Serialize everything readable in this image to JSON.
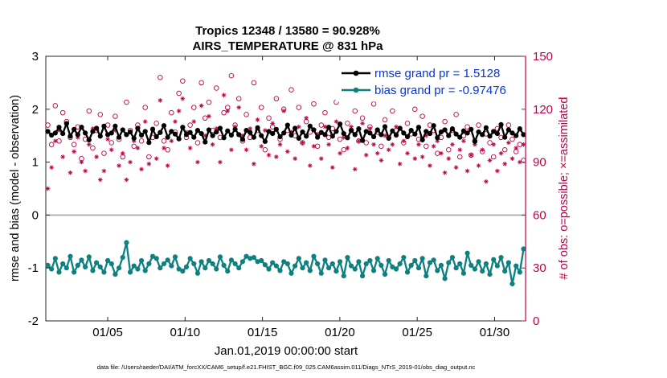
{
  "chart_data": {
    "type": "line",
    "title": "Tropics 12348 / 13580 = 90.928%",
    "subtitle": "AIRS_TEMPERATURE @ 831 hPa",
    "xlabel": "Jan.01,2019 00:00:00 start",
    "ylabel_left": "rmse and bias (model - observation)",
    "ylabel_right": "# of obs: o=possible; ×=assimilated",
    "footnote": "data file: /Users/raeder/DAI/ATM_forcXX/CAM6_setup/f.e21.FHIST_BGC.f09_025.CAM6assim.011/Diags_NTrS_2019-01/obs_diag_output.nc",
    "x_tick_labels": [
      "01/05",
      "01/10",
      "01/15",
      "01/20",
      "01/25",
      "01/30"
    ],
    "x_tick_days": [
      5,
      10,
      15,
      20,
      25,
      30
    ],
    "xlim": [
      1.0,
      32.0
    ],
    "ylim_left": [
      -2,
      3
    ],
    "y_ticks_left": [
      "-2",
      "-1",
      "0",
      "1",
      "2",
      "3"
    ],
    "ylim_right": [
      0,
      150
    ],
    "y_ticks_right": [
      "0",
      "30",
      "60",
      "90",
      "120",
      "150"
    ],
    "colors": {
      "rmse": "#000000",
      "bias": "#0f8080",
      "obs": "#c0004a",
      "zero_line": "#b09ea4",
      "legend_text": "#0a35d8"
    },
    "series": [
      {
        "name": "rmse grand pr = 1.5128",
        "axis": "left",
        "marker": "filled-circle",
        "values": [
          1.58,
          1.51,
          1.55,
          1.66,
          1.54,
          1.73,
          1.49,
          1.62,
          1.52,
          1.66,
          1.55,
          1.42,
          1.58,
          1.64,
          1.49,
          1.68,
          1.52,
          1.55,
          1.68,
          1.47,
          1.61,
          1.52,
          1.57,
          1.45,
          1.64,
          1.51,
          1.58,
          1.37,
          1.62,
          1.48,
          1.56,
          1.69,
          1.47,
          1.58,
          1.53,
          1.44,
          1.66,
          1.52,
          1.56,
          1.47,
          1.6,
          1.54,
          1.38,
          1.61,
          1.5,
          1.57,
          1.64,
          1.46,
          1.59,
          1.51,
          1.62,
          1.52,
          1.43,
          1.6,
          1.56,
          1.47,
          1.65,
          1.5,
          1.39,
          1.58,
          1.54,
          1.62,
          1.48,
          1.55,
          1.7,
          1.51,
          1.64,
          1.45,
          1.57,
          1.49,
          1.68,
          1.61,
          1.47,
          1.56,
          1.52,
          1.66,
          1.49,
          1.58,
          1.72,
          1.54,
          1.46,
          1.6,
          1.52,
          1.63,
          1.41,
          1.58,
          1.55,
          1.48,
          1.61,
          1.52,
          1.67,
          1.45,
          1.59,
          1.51,
          1.64,
          1.55,
          1.48,
          1.6,
          1.53,
          1.66,
          1.42,
          1.58,
          1.54,
          1.69,
          1.46,
          1.57,
          1.61,
          1.5,
          1.63,
          1.53,
          1.47,
          1.59,
          1.55,
          1.62,
          1.39,
          1.57,
          1.52,
          1.65,
          1.49,
          1.58,
          1.54,
          1.71,
          1.47,
          1.61,
          1.55,
          1.5,
          1.63,
          1.52
        ]
      },
      {
        "name": "bias grand pr = -0.97476",
        "axis": "left",
        "marker": "filled-circle",
        "values": [
          -0.95,
          -1.02,
          -0.82,
          -1.08,
          -0.92,
          -1.0,
          -0.78,
          -1.08,
          -0.95,
          -0.85,
          -0.98,
          -0.79,
          -1.05,
          -0.9,
          -0.98,
          -1.08,
          -0.86,
          -0.92,
          -1.12,
          -1.0,
          -0.8,
          -0.52,
          -1.08,
          -0.96,
          -1.02,
          -0.86,
          -1.05,
          -0.92,
          -0.78,
          -0.82,
          -1.0,
          -0.92,
          -0.85,
          -0.96,
          -0.79,
          -1.02,
          -1.06,
          -0.98,
          -0.82,
          -0.92,
          -1.1,
          -0.88,
          -1.0,
          -0.86,
          -0.92,
          -1.02,
          -0.79,
          -0.95,
          -1.06,
          -0.85,
          -0.92,
          -1.0,
          -0.88,
          -0.78,
          -0.82,
          -0.8,
          -0.88,
          -0.86,
          -0.94,
          -1.02,
          -0.9,
          -0.96,
          -1.05,
          -0.88,
          -0.92,
          -1.1,
          -0.96,
          -0.82,
          -1.0,
          -0.9,
          -1.05,
          -0.78,
          -0.92,
          -1.1,
          -0.85,
          -1.0,
          -0.92,
          -1.06,
          -0.88,
          -1.15,
          -0.8,
          -0.96,
          -1.02,
          -0.88,
          -1.15,
          -0.92,
          -0.86,
          -1.05,
          -0.82,
          -0.95,
          -1.12,
          -0.86,
          -0.98,
          -1.02,
          -0.92,
          -0.8,
          -1.08,
          -0.95,
          -0.86,
          -1.0,
          -0.82,
          -1.15,
          -0.9,
          -0.85,
          -1.05,
          -0.95,
          -1.2,
          -0.9,
          -0.8,
          -1.0,
          -0.92,
          -1.1,
          -0.72,
          -0.95,
          -1.02,
          -0.88,
          -1.06,
          -0.92,
          -1.12,
          -0.84,
          -0.96,
          -0.8,
          -1.06,
          -0.9,
          -1.3,
          -0.96,
          -1.08,
          -0.64
        ]
      },
      {
        "name": "possible",
        "axis": "right",
        "marker": "open-circle",
        "values": [
          111,
          100,
          122,
          102,
          118,
          113,
          104,
          100,
          110,
          92,
          103,
          119,
          98,
          108,
          117,
          95,
          111,
          101,
          116,
          103,
          93,
          124,
          108,
          99,
          111,
          102,
          121,
          93,
          104,
          112,
          138,
          102,
          97,
          118,
          107,
          129,
          136,
          104,
          111,
          121,
          101,
          135,
          115,
          124,
          108,
          132,
          104,
          118,
          121,
          139,
          111,
          126,
          102,
          117,
          104,
          135,
          108,
          121,
          97,
          115,
          110,
          126,
          103,
          120,
          108,
          131,
          105,
          121,
          101,
          113,
          107,
          123,
          99,
          111,
          118,
          104,
          109,
          124,
          103,
          97,
          112,
          108,
          119,
          102,
          115,
          101,
          110,
          123,
          107,
          99,
          114,
          104,
          119,
          108,
          132,
          101,
          112,
          106,
          120,
          103,
          116,
          99,
          111,
          108,
          95,
          104,
          113,
          97,
          108,
          117,
          93,
          105,
          110,
          94,
          102,
          111,
          96,
          106,
          101,
          93,
          109,
          104,
          97,
          111,
          103,
          96,
          100,
          91
        ]
      },
      {
        "name": "assimilated",
        "axis": "right",
        "marker": "asterisk",
        "values": [
          75,
          87,
          102,
          108,
          93,
          112,
          84,
          96,
          104,
          90,
          85,
          100,
          109,
          93,
          80,
          85,
          103,
          97,
          108,
          88,
          95,
          80,
          90,
          102,
          98,
          86,
          113,
          89,
          109,
          92,
          125,
          98,
          88,
          102,
          113,
          119,
          126,
          107,
          98,
          113,
          90,
          122,
          105,
          116,
          100,
          109,
          90,
          128,
          119,
          97,
          110,
          121,
          105,
          97,
          109,
          89,
          114,
          99,
          108,
          94,
          112,
          93,
          100,
          119,
          96,
          107,
          92,
          110,
          101,
          115,
          88,
          99,
          106,
          92,
          110,
          100,
          87,
          113,
          95,
          104,
          98,
          110,
          86,
          102,
          112,
          94,
          109,
          100,
          95,
          91,
          105,
          97,
          100,
          110,
          89,
          102,
          95,
          108,
          92,
          100,
          93,
          105,
          88,
          99,
          102,
          95,
          84,
          92,
          100,
          87,
          97,
          102,
          85,
          94,
          100,
          88,
          97,
          79,
          91,
          100,
          85,
          95,
          89,
          101,
          92,
          98,
          90,
          100
        ]
      }
    ]
  }
}
